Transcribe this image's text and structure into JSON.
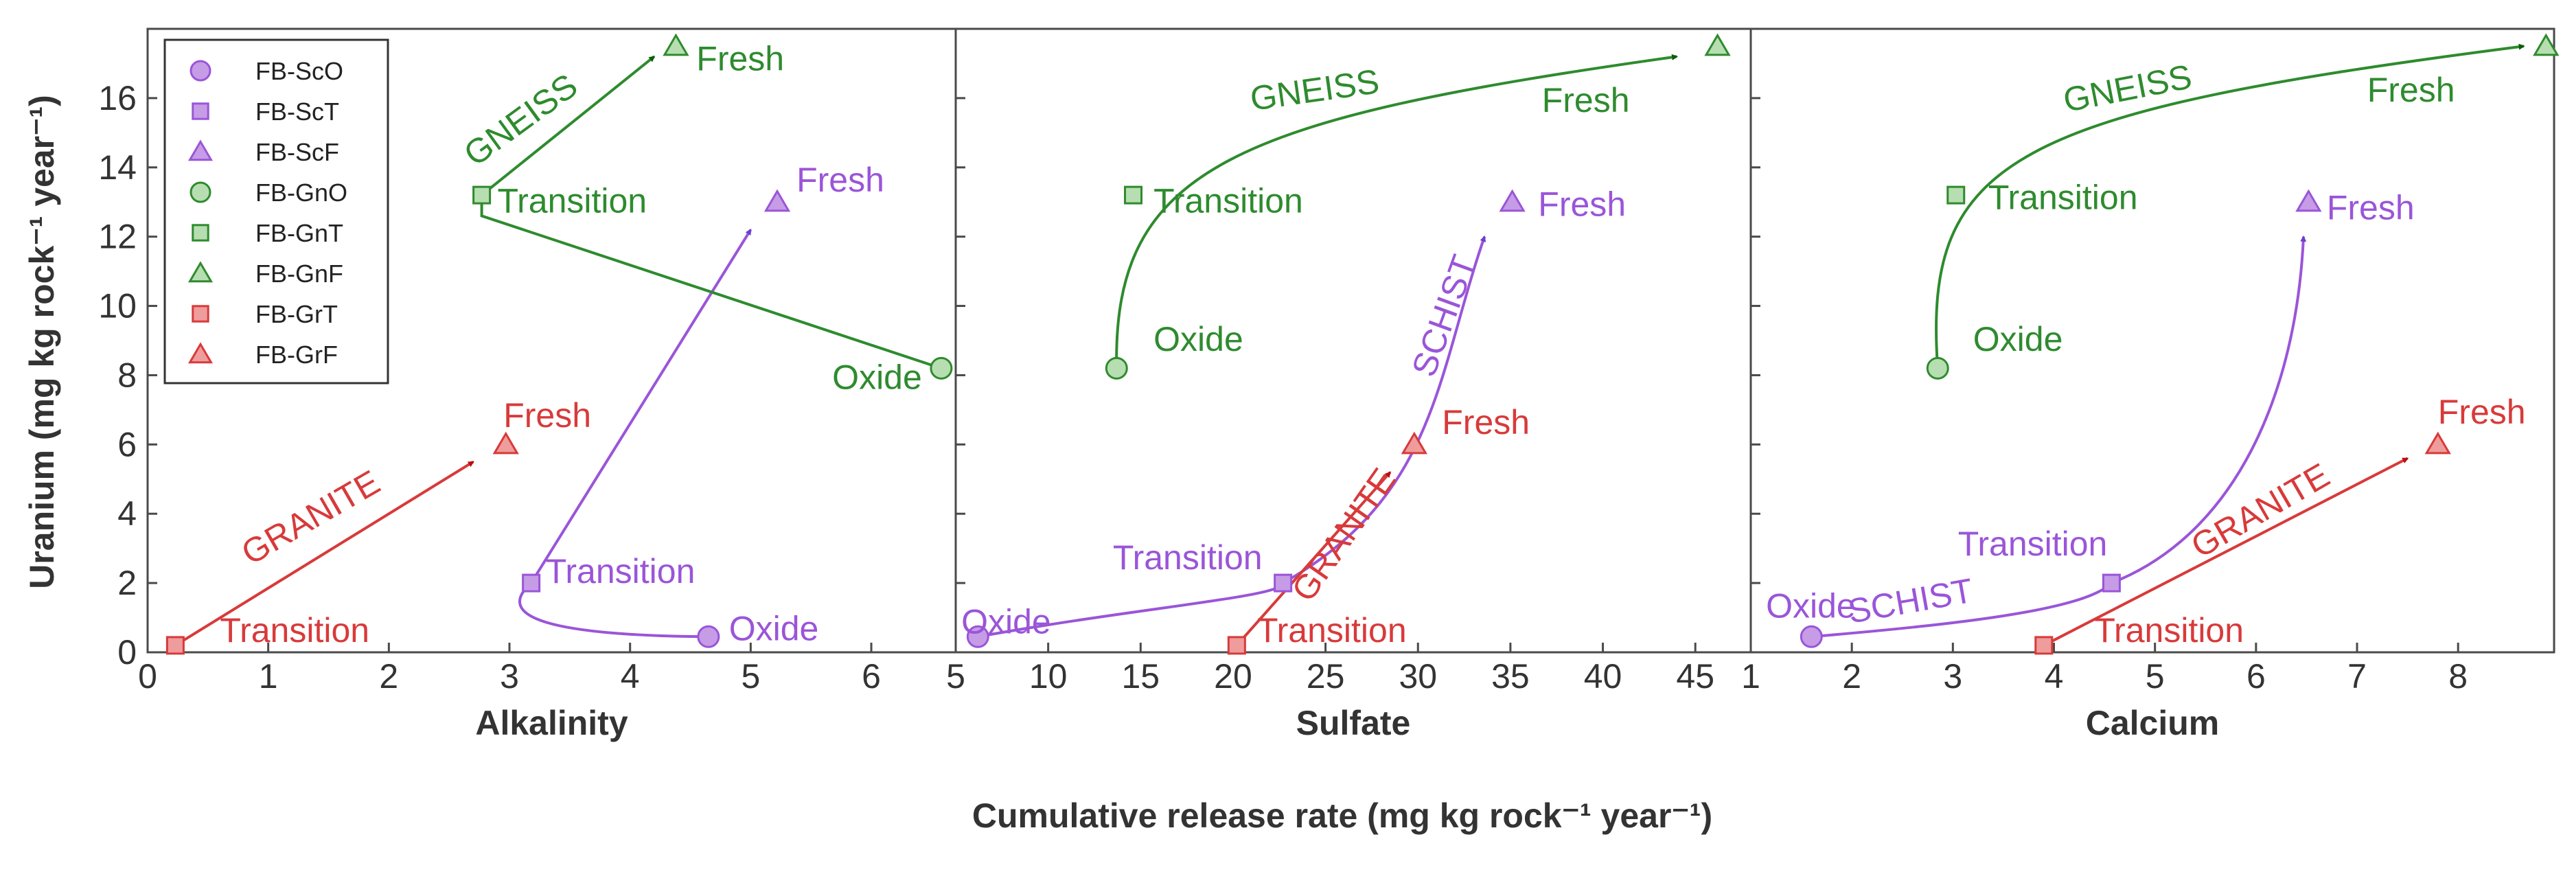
{
  "figure": {
    "ylabel": "Uranium (mg kg rock⁻¹ year⁻¹)",
    "xlabel": "Cumulative release rate (mg kg rock⁻¹ year⁻¹)"
  },
  "colors": {
    "schist": "#9a55d8",
    "gneiss": "#2e8b2e",
    "granite": "#d83a3a",
    "schist_arrow": "#6a3fcf",
    "gneiss_arrow": "#0b5c0b",
    "granite_arrow": "#b80f0f",
    "schist_fill": "#c69ce6",
    "gneiss_fill": "#b7deb1",
    "granite_fill": "#ef9c9c"
  },
  "legend": [
    {
      "label": "FB-ScO",
      "marker": "circle",
      "rock": "schist"
    },
    {
      "label": "FB-ScT",
      "marker": "square",
      "rock": "schist"
    },
    {
      "label": "FB-ScF",
      "marker": "triangle",
      "rock": "schist"
    },
    {
      "label": "FB-GnO",
      "marker": "circle",
      "rock": "gneiss"
    },
    {
      "label": "FB-GnT",
      "marker": "square",
      "rock": "gneiss"
    },
    {
      "label": "FB-GnF",
      "marker": "triangle",
      "rock": "gneiss"
    },
    {
      "label": "FB-GrT",
      "marker": "square",
      "rock": "granite"
    },
    {
      "label": "FB-GrF",
      "marker": "triangle",
      "rock": "granite"
    }
  ],
  "chart_data": [
    {
      "type": "scatter",
      "xlabel": "Alkalinity",
      "ylabel": "Uranium (mg kg rock⁻¹ year⁻¹)",
      "xlim": [
        0,
        6.7
      ],
      "ylim": [
        0,
        18
      ],
      "xticks": [
        0,
        1,
        2,
        3,
        4,
        5,
        6
      ],
      "yticks": [
        0,
        2,
        4,
        6,
        8,
        10,
        12,
        14,
        16
      ],
      "legend_position": "top-left",
      "series": [
        {
          "name": "FB-ScO",
          "rock": "schist",
          "marker": "circle",
          "x": 4.65,
          "y": 0.45
        },
        {
          "name": "FB-ScT",
          "rock": "schist",
          "marker": "square",
          "x": 3.18,
          "y": 2.0
        },
        {
          "name": "FB-ScF",
          "rock": "schist",
          "marker": "triangle",
          "x": 5.22,
          "y": 13.0
        },
        {
          "name": "FB-GnO",
          "rock": "gneiss",
          "marker": "circle",
          "x": 6.58,
          "y": 8.2
        },
        {
          "name": "FB-GnT",
          "rock": "gneiss",
          "marker": "square",
          "x": 2.77,
          "y": 13.2
        },
        {
          "name": "FB-GnF",
          "rock": "gneiss",
          "marker": "triangle",
          "x": 4.38,
          "y": 17.5
        },
        {
          "name": "FB-GrT",
          "rock": "granite",
          "marker": "square",
          "x": 0.23,
          "y": 0.2
        },
        {
          "name": "FB-GrF",
          "rock": "granite",
          "marker": "triangle",
          "x": 2.97,
          "y": 6.0
        }
      ],
      "annotations": [
        {
          "text": "Oxide",
          "rock": "schist",
          "x": 4.82,
          "y": 0.35,
          "anchor": "start",
          "rotate": 0
        },
        {
          "text": "Transition",
          "rock": "schist",
          "x": 3.3,
          "y": 2.0,
          "anchor": "start",
          "rotate": 0
        },
        {
          "text": "Fresh",
          "rock": "schist",
          "x": 5.38,
          "y": 13.3,
          "anchor": "start",
          "rotate": 0
        },
        {
          "text": "Oxide",
          "rock": "gneiss",
          "x": 6.42,
          "y": 7.6,
          "anchor": "end",
          "rotate": 0
        },
        {
          "text": "Transition",
          "rock": "gneiss",
          "x": 2.9,
          "y": 12.7,
          "anchor": "start",
          "rotate": 0
        },
        {
          "text": "Fresh",
          "rock": "gneiss",
          "x": 4.55,
          "y": 16.8,
          "anchor": "start",
          "rotate": 0
        },
        {
          "text": "GNEISS",
          "rock": "gneiss",
          "x": 3.15,
          "y": 15.1,
          "anchor": "middle",
          "rotate": -36
        },
        {
          "text": "Transition",
          "rock": "granite",
          "x": 0.6,
          "y": 0.3,
          "anchor": "start",
          "rotate": 0
        },
        {
          "text": "Fresh",
          "rock": "granite",
          "x": 2.95,
          "y": 6.5,
          "anchor": "start",
          "rotate": 0
        },
        {
          "text": "GRANITE",
          "rock": "granite",
          "x": 1.4,
          "y": 3.6,
          "anchor": "middle",
          "rotate": -30
        }
      ],
      "trends": [
        {
          "rock": "schist",
          "kind": "quad",
          "points": [
            [
              4.65,
              0.45
            ],
            [
              2.7,
              0.5
            ],
            [
              3.18,
              2.0
            ],
            [
              5.0,
              12.2
            ]
          ]
        },
        {
          "rock": "gneiss",
          "kind": "line",
          "points": [
            [
              6.58,
              8.2
            ],
            [
              2.77,
              12.6
            ],
            [
              2.77,
              13.2
            ],
            [
              4.2,
              17.2
            ]
          ]
        },
        {
          "rock": "granite",
          "kind": "line",
          "points": [
            [
              0.23,
              0.2
            ],
            [
              2.7,
              5.5
            ]
          ]
        }
      ]
    },
    {
      "type": "scatter",
      "xlabel": "Sulfate",
      "ylabel": "",
      "xlim": [
        5,
        48
      ],
      "ylim": [
        0,
        18
      ],
      "xticks": [
        5,
        10,
        15,
        20,
        25,
        30,
        35,
        40,
        45
      ],
      "yticks": [
        0,
        2,
        4,
        6,
        8,
        10,
        12,
        14,
        16
      ],
      "series": [
        {
          "name": "FB-ScO",
          "rock": "schist",
          "marker": "circle",
          "x": 6.2,
          "y": 0.45
        },
        {
          "name": "FB-ScT",
          "rock": "schist",
          "marker": "square",
          "x": 22.7,
          "y": 2.0
        },
        {
          "name": "FB-ScF",
          "rock": "schist",
          "marker": "triangle",
          "x": 35.1,
          "y": 13.0
        },
        {
          "name": "FB-GnO",
          "rock": "gneiss",
          "marker": "circle",
          "x": 13.7,
          "y": 8.2
        },
        {
          "name": "FB-GnT",
          "rock": "gneiss",
          "marker": "square",
          "x": 14.6,
          "y": 13.2
        },
        {
          "name": "FB-GnF",
          "rock": "gneiss",
          "marker": "triangle",
          "x": 46.2,
          "y": 17.5
        },
        {
          "name": "FB-GrT",
          "rock": "granite",
          "marker": "square",
          "x": 20.2,
          "y": 0.2
        },
        {
          "name": "FB-GrF",
          "rock": "granite",
          "marker": "triangle",
          "x": 29.8,
          "y": 6.0
        }
      ],
      "annotations": [
        {
          "text": "Oxide",
          "rock": "schist",
          "x": 5.3,
          "y": 0.55,
          "anchor": "start",
          "rotate": 0
        },
        {
          "text": "Transition",
          "rock": "schist",
          "x": 13.5,
          "y": 2.4,
          "anchor": "start",
          "rotate": 0
        },
        {
          "text": "Fresh",
          "rock": "schist",
          "x": 36.5,
          "y": 12.6,
          "anchor": "start",
          "rotate": 0
        },
        {
          "text": "SCHIST",
          "rock": "schist",
          "x": 32.0,
          "y": 9.6,
          "anchor": "middle",
          "rotate": -70
        },
        {
          "text": "Oxide",
          "rock": "gneiss",
          "x": 15.7,
          "y": 8.7,
          "anchor": "start",
          "rotate": 0
        },
        {
          "text": "Transition",
          "rock": "gneiss",
          "x": 15.7,
          "y": 12.7,
          "anchor": "start",
          "rotate": 0
        },
        {
          "text": "Fresh",
          "rock": "gneiss",
          "x": 36.7,
          "y": 15.6,
          "anchor": "start",
          "rotate": 0
        },
        {
          "text": "GNEISS",
          "rock": "gneiss",
          "x": 24.5,
          "y": 15.9,
          "anchor": "middle",
          "rotate": -8
        },
        {
          "text": "Transition",
          "rock": "granite",
          "x": 21.3,
          "y": 0.3,
          "anchor": "start",
          "rotate": 0
        },
        {
          "text": "Fresh",
          "rock": "granite",
          "x": 31.3,
          "y": 6.3,
          "anchor": "start",
          "rotate": 0
        },
        {
          "text": "GRANITE",
          "rock": "granite",
          "x": 26.5,
          "y": 3.2,
          "anchor": "middle",
          "rotate": -55
        }
      ],
      "trends": [
        {
          "rock": "schist",
          "kind": "cubic",
          "points": [
            [
              6.2,
              0.45
            ],
            [
              15.0,
              1.3
            ],
            [
              22.7,
              1.6
            ],
            [
              22.7,
              2.0
            ]
          ]
        },
        {
          "rock": "schist",
          "kind": "cubic",
          "points": [
            [
              22.7,
              2.0
            ],
            [
              31.0,
              4.5
            ],
            [
              31.0,
              8.0
            ],
            [
              33.6,
              12.0
            ]
          ]
        },
        {
          "rock": "gneiss",
          "kind": "cubic",
          "points": [
            [
              13.7,
              8.2
            ],
            [
              13.5,
              14.0
            ],
            [
              20.0,
              15.4
            ],
            [
              44.0,
              17.2
            ]
          ]
        },
        {
          "rock": "granite",
          "kind": "line",
          "points": [
            [
              20.2,
              0.2
            ],
            [
              28.5,
              5.2
            ]
          ]
        }
      ]
    },
    {
      "type": "scatter",
      "xlabel": "Calcium",
      "ylabel": "",
      "xlim": [
        1,
        8.95
      ],
      "ylim": [
        0,
        18
      ],
      "xticks": [
        1,
        2,
        3,
        4,
        5,
        6,
        7,
        8
      ],
      "yticks": [
        0,
        2,
        4,
        6,
        8,
        10,
        12,
        14,
        16
      ],
      "series": [
        {
          "name": "FB-ScO",
          "rock": "schist",
          "marker": "circle",
          "x": 1.6,
          "y": 0.45
        },
        {
          "name": "FB-ScT",
          "rock": "schist",
          "marker": "square",
          "x": 4.57,
          "y": 2.0
        },
        {
          "name": "FB-ScF",
          "rock": "schist",
          "marker": "triangle",
          "x": 6.52,
          "y": 13.0
        },
        {
          "name": "FB-GnO",
          "rock": "gneiss",
          "marker": "circle",
          "x": 2.85,
          "y": 8.2
        },
        {
          "name": "FB-GnT",
          "rock": "gneiss",
          "marker": "square",
          "x": 3.03,
          "y": 13.2
        },
        {
          "name": "FB-GnF",
          "rock": "gneiss",
          "marker": "triangle",
          "x": 8.87,
          "y": 17.5
        },
        {
          "name": "FB-GrT",
          "rock": "granite",
          "marker": "square",
          "x": 3.9,
          "y": 0.2
        },
        {
          "name": "FB-GrF",
          "rock": "granite",
          "marker": "triangle",
          "x": 7.8,
          "y": 6.0
        }
      ],
      "annotations": [
        {
          "text": "Oxide",
          "rock": "schist",
          "x": 1.15,
          "y": 1.0,
          "anchor": "start",
          "rotate": 0
        },
        {
          "text": "Transition",
          "rock": "schist",
          "x": 3.05,
          "y": 2.8,
          "anchor": "start",
          "rotate": 0
        },
        {
          "text": "Fresh",
          "rock": "schist",
          "x": 6.7,
          "y": 12.5,
          "anchor": "start",
          "rotate": 0
        },
        {
          "text": "SCHIST",
          "rock": "schist",
          "x": 2.6,
          "y": 1.15,
          "anchor": "middle",
          "rotate": -10
        },
        {
          "text": "Oxide",
          "rock": "gneiss",
          "x": 3.2,
          "y": 8.7,
          "anchor": "start",
          "rotate": 0
        },
        {
          "text": "Transition",
          "rock": "gneiss",
          "x": 3.35,
          "y": 12.8,
          "anchor": "start",
          "rotate": 0
        },
        {
          "text": "Fresh",
          "rock": "gneiss",
          "x": 7.1,
          "y": 15.9,
          "anchor": "start",
          "rotate": 0
        },
        {
          "text": "GNEISS",
          "rock": "gneiss",
          "x": 4.75,
          "y": 15.95,
          "anchor": "middle",
          "rotate": -11
        },
        {
          "text": "Transition",
          "rock": "granite",
          "x": 4.4,
          "y": 0.3,
          "anchor": "start",
          "rotate": 0
        },
        {
          "text": "Fresh",
          "rock": "granite",
          "x": 7.8,
          "y": 6.6,
          "anchor": "start",
          "rotate": 0
        },
        {
          "text": "GRANITE",
          "rock": "granite",
          "x": 6.1,
          "y": 3.8,
          "anchor": "middle",
          "rotate": -30
        }
      ],
      "trends": [
        {
          "rock": "schist",
          "kind": "cubic",
          "points": [
            [
              1.6,
              0.45
            ],
            [
              3.0,
              0.8
            ],
            [
              4.3,
              1.2
            ],
            [
              4.57,
              2.0
            ]
          ]
        },
        {
          "rock": "schist",
          "kind": "cubic",
          "points": [
            [
              4.57,
              2.0
            ],
            [
              5.8,
              3.4
            ],
            [
              6.4,
              7.5
            ],
            [
              6.47,
              12.0
            ]
          ]
        },
        {
          "rock": "gneiss",
          "kind": "cubic",
          "points": [
            [
              2.85,
              8.2
            ],
            [
              2.7,
              14.3
            ],
            [
              3.6,
              15.6
            ],
            [
              8.65,
              17.5
            ]
          ]
        },
        {
          "rock": "granite",
          "kind": "line",
          "points": [
            [
              3.9,
              0.2
            ],
            [
              7.5,
              5.6
            ]
          ]
        }
      ]
    }
  ]
}
